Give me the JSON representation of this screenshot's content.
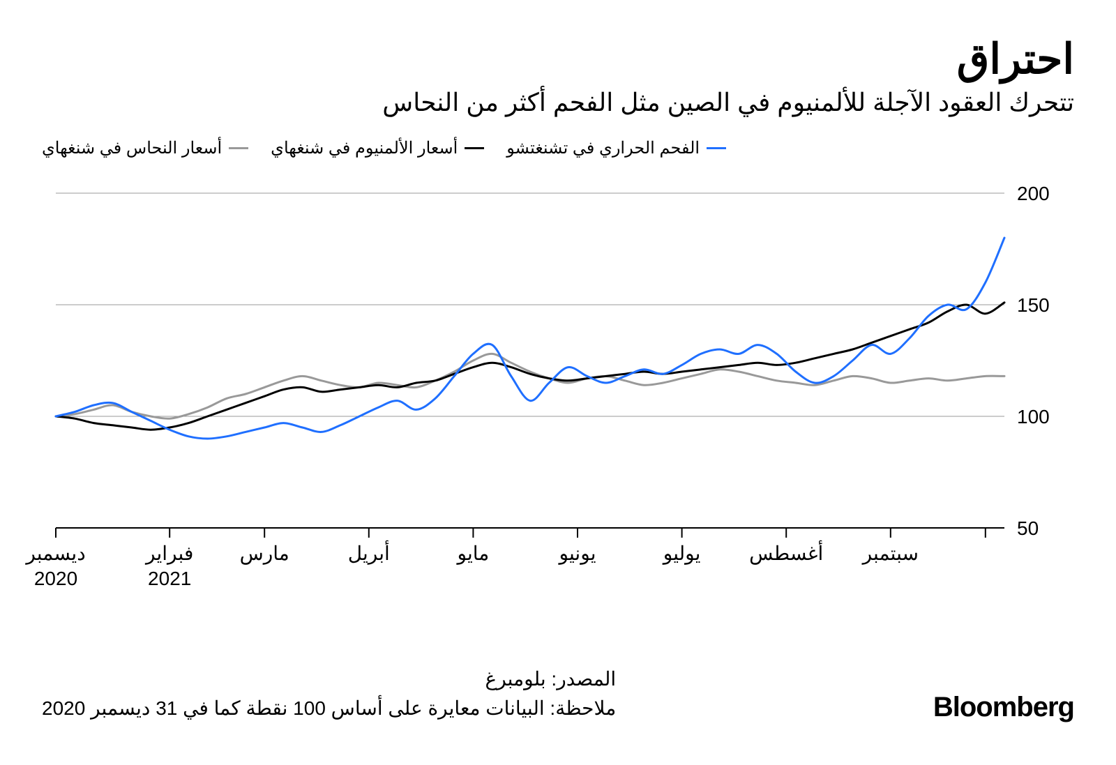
{
  "title": "احتراق",
  "subtitle": "تتحرك العقود الآجلة للألمنيوم في الصين مثل الفحم أكثر من النحاس",
  "legend": [
    {
      "label": "أسعار النحاس في شنغهاي",
      "color": "#999999"
    },
    {
      "label": "أسعار الألمنيوم في شنغهاي",
      "color": "#000000"
    },
    {
      "label": "الفحم الحراري في تشنغتشو",
      "color": "#1f6fff"
    }
  ],
  "chart": {
    "type": "line",
    "background_color": "#ffffff",
    "grid_color": "#999999",
    "axis_color": "#000000",
    "line_width": 3,
    "ylim": [
      50,
      200
    ],
    "yticks": [
      50,
      100,
      150,
      200
    ],
    "ytick_labels": [
      "50",
      "100",
      "150",
      "200"
    ],
    "label_fontsize": 28,
    "xtick_positions": [
      0,
      0.12,
      0.22,
      0.33,
      0.44,
      0.55,
      0.66,
      0.77,
      0.88,
      0.98
    ],
    "xtick_labels": [
      "ديسمبر",
      "فبراير",
      "مارس",
      "أبريل",
      "مايو",
      "يونيو",
      "يوليو",
      "أغسطس",
      "سبتمبر",
      ""
    ],
    "xtick_sublabels": [
      "2020",
      "2021",
      "",
      "",
      "",
      "",
      "",
      "",
      "",
      ""
    ],
    "series": [
      {
        "name": "copper",
        "color": "#999999",
        "data": [
          [
            0.0,
            100
          ],
          [
            0.02,
            101
          ],
          [
            0.04,
            103
          ],
          [
            0.06,
            105
          ],
          [
            0.08,
            102
          ],
          [
            0.1,
            100
          ],
          [
            0.12,
            99
          ],
          [
            0.14,
            101
          ],
          [
            0.16,
            104
          ],
          [
            0.18,
            108
          ],
          [
            0.2,
            110
          ],
          [
            0.22,
            113
          ],
          [
            0.24,
            116
          ],
          [
            0.26,
            118
          ],
          [
            0.28,
            116
          ],
          [
            0.3,
            114
          ],
          [
            0.32,
            113
          ],
          [
            0.34,
            115
          ],
          [
            0.36,
            114
          ],
          [
            0.38,
            113
          ],
          [
            0.4,
            116
          ],
          [
            0.42,
            120
          ],
          [
            0.44,
            125
          ],
          [
            0.46,
            128
          ],
          [
            0.48,
            124
          ],
          [
            0.5,
            120
          ],
          [
            0.52,
            117
          ],
          [
            0.54,
            115
          ],
          [
            0.56,
            117
          ],
          [
            0.58,
            118
          ],
          [
            0.6,
            116
          ],
          [
            0.62,
            114
          ],
          [
            0.64,
            115
          ],
          [
            0.66,
            117
          ],
          [
            0.68,
            119
          ],
          [
            0.7,
            121
          ],
          [
            0.72,
            120
          ],
          [
            0.74,
            118
          ],
          [
            0.76,
            116
          ],
          [
            0.78,
            115
          ],
          [
            0.8,
            114
          ],
          [
            0.82,
            116
          ],
          [
            0.84,
            118
          ],
          [
            0.86,
            117
          ],
          [
            0.88,
            115
          ],
          [
            0.9,
            116
          ],
          [
            0.92,
            117
          ],
          [
            0.94,
            116
          ],
          [
            0.96,
            117
          ],
          [
            0.98,
            118
          ],
          [
            1.0,
            118
          ]
        ]
      },
      {
        "name": "aluminum",
        "color": "#000000",
        "data": [
          [
            0.0,
            100
          ],
          [
            0.02,
            99
          ],
          [
            0.04,
            97
          ],
          [
            0.06,
            96
          ],
          [
            0.08,
            95
          ],
          [
            0.1,
            94
          ],
          [
            0.12,
            95
          ],
          [
            0.14,
            97
          ],
          [
            0.16,
            100
          ],
          [
            0.18,
            103
          ],
          [
            0.2,
            106
          ],
          [
            0.22,
            109
          ],
          [
            0.24,
            112
          ],
          [
            0.26,
            113
          ],
          [
            0.28,
            111
          ],
          [
            0.3,
            112
          ],
          [
            0.32,
            113
          ],
          [
            0.34,
            114
          ],
          [
            0.36,
            113
          ],
          [
            0.38,
            115
          ],
          [
            0.4,
            116
          ],
          [
            0.42,
            119
          ],
          [
            0.44,
            122
          ],
          [
            0.46,
            124
          ],
          [
            0.48,
            122
          ],
          [
            0.5,
            119
          ],
          [
            0.52,
            117
          ],
          [
            0.54,
            116
          ],
          [
            0.56,
            117
          ],
          [
            0.58,
            118
          ],
          [
            0.6,
            119
          ],
          [
            0.62,
            120
          ],
          [
            0.64,
            119
          ],
          [
            0.66,
            120
          ],
          [
            0.68,
            121
          ],
          [
            0.7,
            122
          ],
          [
            0.72,
            123
          ],
          [
            0.74,
            124
          ],
          [
            0.76,
            123
          ],
          [
            0.78,
            124
          ],
          [
            0.8,
            126
          ],
          [
            0.82,
            128
          ],
          [
            0.84,
            130
          ],
          [
            0.86,
            133
          ],
          [
            0.88,
            136
          ],
          [
            0.9,
            139
          ],
          [
            0.92,
            142
          ],
          [
            0.94,
            147
          ],
          [
            0.96,
            150
          ],
          [
            0.98,
            146
          ],
          [
            1.0,
            151
          ]
        ]
      },
      {
        "name": "coal",
        "color": "#1f6fff",
        "data": [
          [
            0.0,
            100
          ],
          [
            0.02,
            102
          ],
          [
            0.04,
            105
          ],
          [
            0.06,
            106
          ],
          [
            0.08,
            102
          ],
          [
            0.1,
            98
          ],
          [
            0.12,
            94
          ],
          [
            0.14,
            91
          ],
          [
            0.16,
            90
          ],
          [
            0.18,
            91
          ],
          [
            0.2,
            93
          ],
          [
            0.22,
            95
          ],
          [
            0.24,
            97
          ],
          [
            0.26,
            95
          ],
          [
            0.28,
            93
          ],
          [
            0.3,
            96
          ],
          [
            0.32,
            100
          ],
          [
            0.34,
            104
          ],
          [
            0.36,
            107
          ],
          [
            0.38,
            103
          ],
          [
            0.4,
            108
          ],
          [
            0.42,
            118
          ],
          [
            0.44,
            128
          ],
          [
            0.46,
            132
          ],
          [
            0.48,
            118
          ],
          [
            0.5,
            107
          ],
          [
            0.52,
            115
          ],
          [
            0.54,
            122
          ],
          [
            0.56,
            118
          ],
          [
            0.58,
            115
          ],
          [
            0.6,
            118
          ],
          [
            0.62,
            121
          ],
          [
            0.64,
            119
          ],
          [
            0.66,
            123
          ],
          [
            0.68,
            128
          ],
          [
            0.7,
            130
          ],
          [
            0.72,
            128
          ],
          [
            0.74,
            132
          ],
          [
            0.76,
            128
          ],
          [
            0.78,
            120
          ],
          [
            0.8,
            115
          ],
          [
            0.82,
            118
          ],
          [
            0.84,
            125
          ],
          [
            0.86,
            132
          ],
          [
            0.88,
            128
          ],
          [
            0.9,
            135
          ],
          [
            0.92,
            145
          ],
          [
            0.94,
            150
          ],
          [
            0.96,
            148
          ],
          [
            0.98,
            160
          ],
          [
            1.0,
            180
          ]
        ]
      }
    ]
  },
  "footer": {
    "source": "المصدر: بلومبرغ",
    "note": "ملاحظة: البيانات معايرة على أساس 100 نقطة كما في 31 ديسمبر 2020",
    "brand": "Bloomberg"
  }
}
